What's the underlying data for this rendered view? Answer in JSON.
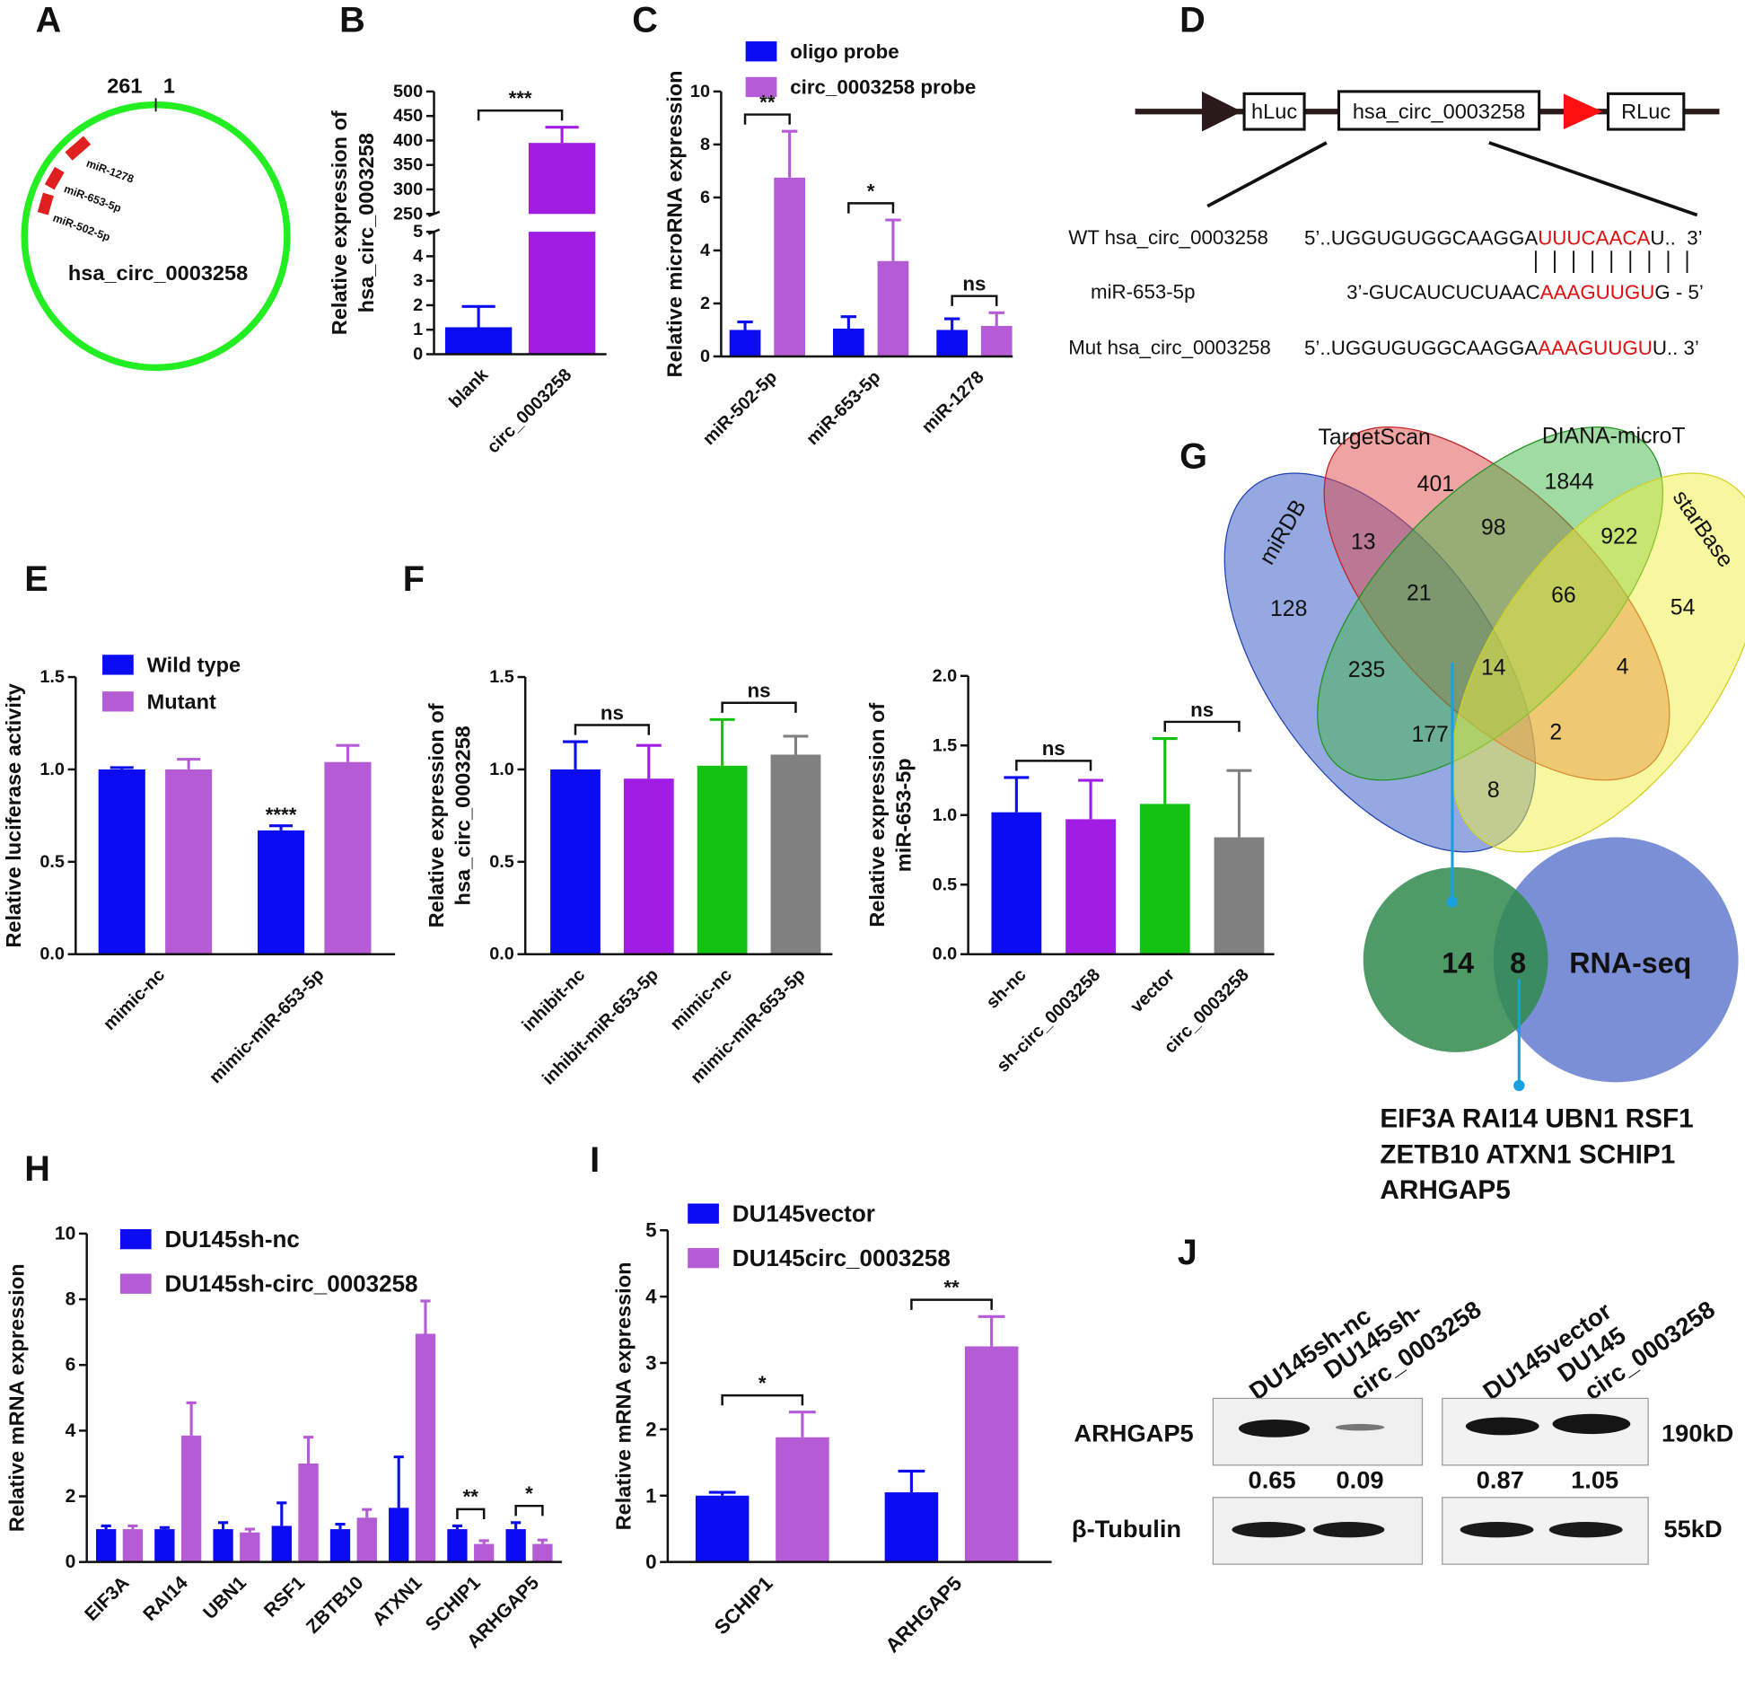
{
  "panel_labels": [
    "A",
    "B",
    "C",
    "D",
    "E",
    "F",
    "G",
    "H",
    "I",
    "J"
  ],
  "circ_map": {
    "start": 261,
    "end": 1,
    "mirnas": [
      "miR-1278",
      "miR-653-5p",
      "miR-502-5p"
    ],
    "name": "hsa_circ_0003258"
  },
  "construct": {
    "elements": [
      "hLuc",
      "hsa_circ_0003258",
      "RLuc"
    ],
    "rows": [
      {
        "label": "WT hsa_circ_0003258",
        "seq": [
          "5’..UGGUGUGGCAAGGA",
          "UUUCAACA",
          "U..  3’"
        ]
      },
      {
        "label": "miR-653-5p",
        "seq": [
          "3’-GUCAUCUCUAAC",
          "AAAGUUGU",
          "G - 5’"
        ]
      },
      {
        "label": "Mut hsa_circ_0003258",
        "seq": [
          "5’..UGGUGUGGCAAGGA",
          "AAAGUUGU",
          "U..  3’"
        ]
      }
    ]
  },
  "venn": {
    "sets": [
      "miRDB",
      "TargetScan",
      "DIANA-microT",
      "starBase"
    ],
    "counts": [
      401,
      1844,
      13,
      98,
      922,
      128,
      21,
      66,
      54,
      235,
      14,
      4,
      177,
      2,
      8
    ]
  },
  "venn2": {
    "counts": [
      14,
      8
    ],
    "label": "RNA-seq",
    "genes": [
      "EIF3A RAI14 UBN1 RSF1",
      "ZETB10 ATXN1 SCHIP1",
      "ARHGAP5"
    ]
  },
  "blot": {
    "lanes": [
      [
        "DU145sh-nc"
      ],
      [
        "DU145sh-",
        "circ_0003258"
      ],
      [
        "DU145vector"
      ],
      [
        "DU145",
        "circ_0003258"
      ]
    ],
    "proteins": [
      "ARHGAP5",
      "β-Tubulin"
    ],
    "sizes": [
      "190kD",
      "55kD"
    ],
    "quantities": [
      0.65,
      0.09,
      0.87,
      1.05
    ]
  },
  "chart_data": [
    {
      "type": "bar",
      "y_label": [
        "Relative expression of",
        "hsa_circ_0003258"
      ],
      "categories": [
        "blank",
        "circ_0003258"
      ],
      "series": [
        {
          "colors": [
            "#0c0cf2",
            "#a11de3"
          ],
          "values": [
            1.1,
            395
          ],
          "errors": [
            0.85,
            32
          ]
        }
      ],
      "ylim": [
        0,
        500
      ],
      "ybreak": [
        5,
        250
      ],
      "yticks": [
        0,
        1,
        2,
        3,
        4,
        5,
        250,
        300,
        350,
        400,
        450,
        500
      ],
      "annotations": [
        {
          "text": "***",
          "over": [
            "blank",
            "circ_0003258"
          ]
        }
      ]
    },
    {
      "type": "bar",
      "y_label": "Relative microRNA expression",
      "categories": [
        "miR-502-5p",
        "miR-653-5p",
        "miR-1278"
      ],
      "series": [
        {
          "name": "oligo probe",
          "color": "#0c0cf2",
          "values": [
            1.0,
            1.05,
            1.0
          ],
          "errors": [
            0.3,
            0.45,
            0.42
          ]
        },
        {
          "name": "circ_0003258 probe",
          "color": "#b65bd6",
          "values": [
            6.75,
            3.6,
            1.15
          ],
          "errors": [
            1.75,
            1.55,
            0.5
          ]
        }
      ],
      "ylim": [
        0,
        10
      ],
      "yticks": [
        0,
        2,
        4,
        6,
        8,
        10
      ],
      "annotations": [
        {
          "text": "**",
          "over": [
            "miR-502-5p"
          ]
        },
        {
          "text": "*",
          "over": [
            "miR-653-5p"
          ]
        },
        {
          "text": "ns",
          "over": [
            "miR-1278"
          ]
        }
      ]
    },
    {
      "type": "bar",
      "y_label": "Relative luciferase activity",
      "categories": [
        "mimic-nc",
        "mimic-miR-653-5p"
      ],
      "series": [
        {
          "name": "Wild type",
          "color": "#0c0cf2",
          "values": [
            1.0,
            0.67
          ],
          "errors": [
            0.01,
            0.025
          ]
        },
        {
          "name": "Mutant",
          "color": "#b65bd6",
          "values": [
            1.0,
            1.04
          ],
          "errors": [
            0.055,
            0.09
          ]
        }
      ],
      "ylim": [
        0,
        1.5
      ],
      "yticks": [
        {
          "value": 0,
          "label": "0.0"
        },
        0.5,
        {
          "value": 1,
          "label": "1.0"
        },
        1.5
      ],
      "annotations": [
        {
          "text": "****",
          "over": [
            "mimic-miR-653-5p"
          ],
          "series": "Wild type"
        }
      ]
    },
    {
      "type": "bar",
      "y_label": [
        "Relative expression of",
        "hsa_circ_0003258"
      ],
      "categories": [
        "inhibit-nc",
        "inhibit-miR-653-5p",
        "mimic-nc",
        "mimic-miR-653-5p"
      ],
      "series": [
        {
          "colors": [
            "#0c0cf2",
            "#a11de3",
            "#12c312",
            "#808080"
          ],
          "values": [
            1.0,
            0.95,
            1.02,
            1.08
          ],
          "errors": [
            0.15,
            0.18,
            0.25,
            0.1
          ]
        }
      ],
      "ylim": [
        0,
        1.5
      ],
      "yticks": [
        {
          "value": 0,
          "label": "0.0"
        },
        0.5,
        {
          "value": 1,
          "label": "1.0"
        },
        1.5
      ],
      "annotations": [
        {
          "text": "ns",
          "over": [
            "inhibit-nc",
            "inhibit-miR-653-5p"
          ]
        },
        {
          "text": "ns",
          "over": [
            "mimic-nc",
            "mimic-miR-653-5p"
          ]
        }
      ]
    },
    {
      "type": "bar",
      "y_label": [
        "Relative expression of",
        "miR-653-5p"
      ],
      "categories": [
        "sh-nc",
        "sh-circ_0003258",
        "vector",
        "circ_0003258"
      ],
      "series": [
        {
          "colors": [
            "#0c0cf2",
            "#a11de3",
            "#12c312",
            "#808080"
          ],
          "values": [
            1.02,
            0.97,
            1.08,
            0.84
          ],
          "errors": [
            0.25,
            0.28,
            0.47,
            0.48
          ]
        }
      ],
      "ylim": [
        0,
        2
      ],
      "yticks": [
        {
          "value": 0,
          "label": "0.0"
        },
        0.5,
        {
          "value": 1,
          "label": "1.0"
        },
        1.5,
        {
          "value": 2,
          "label": "2.0"
        }
      ],
      "annotations": [
        {
          "text": "ns",
          "over": [
            "sh-nc",
            "sh-circ_0003258"
          ]
        },
        {
          "text": "ns",
          "over": [
            "vector",
            "circ_0003258"
          ]
        }
      ]
    },
    {
      "type": "bar",
      "y_label": "Relative mRNA expression",
      "categories": [
        "EIF3A",
        "RAI14",
        "UBN1",
        "RSF1",
        "ZBTB10",
        "ATXN1",
        "SCHIP1",
        "ARHGAP5"
      ],
      "series": [
        {
          "name": "DU145sh-nc",
          "color": "#0c0cf2",
          "values": [
            1.0,
            1.0,
            1.0,
            1.1,
            1.0,
            1.65,
            1.0,
            1.0
          ],
          "errors": [
            0.1,
            0.05,
            0.2,
            0.7,
            0.15,
            1.55,
            0.1,
            0.2
          ]
        },
        {
          "name": "DU145sh-circ_0003258",
          "color": "#b65bd6",
          "values": [
            1.0,
            3.85,
            0.9,
            3.0,
            1.35,
            6.95,
            0.55,
            0.55
          ],
          "errors": [
            0.1,
            1.0,
            0.1,
            0.8,
            0.25,
            1.0,
            0.1,
            0.12
          ]
        }
      ],
      "ylim": [
        0,
        10
      ],
      "yticks": [
        0,
        2,
        4,
        6,
        8,
        10
      ],
      "annotations": [
        {
          "text": "**",
          "over": [
            "SCHIP1"
          ]
        },
        {
          "text": "*",
          "over": [
            "ARHGAP5"
          ]
        }
      ]
    },
    {
      "type": "bar",
      "y_label": "Relative mRNA expression",
      "categories": [
        "SCHIP1",
        "ARHGAP5"
      ],
      "series": [
        {
          "name": "DU145vector",
          "color": "#0c0cf2",
          "values": [
            1.0,
            1.05
          ],
          "errors": [
            0.05,
            0.32
          ]
        },
        {
          "name": "DU145circ_0003258",
          "color": "#b65bd6",
          "values": [
            1.88,
            3.25
          ],
          "errors": [
            0.38,
            0.45
          ]
        }
      ],
      "ylim": [
        0,
        5
      ],
      "yticks": [
        0,
        1,
        2,
        3,
        4,
        5
      ],
      "annotations": [
        {
          "text": "*",
          "over": [
            "SCHIP1"
          ]
        },
        {
          "text": "**",
          "over": [
            "ARHGAP5"
          ]
        }
      ]
    }
  ]
}
